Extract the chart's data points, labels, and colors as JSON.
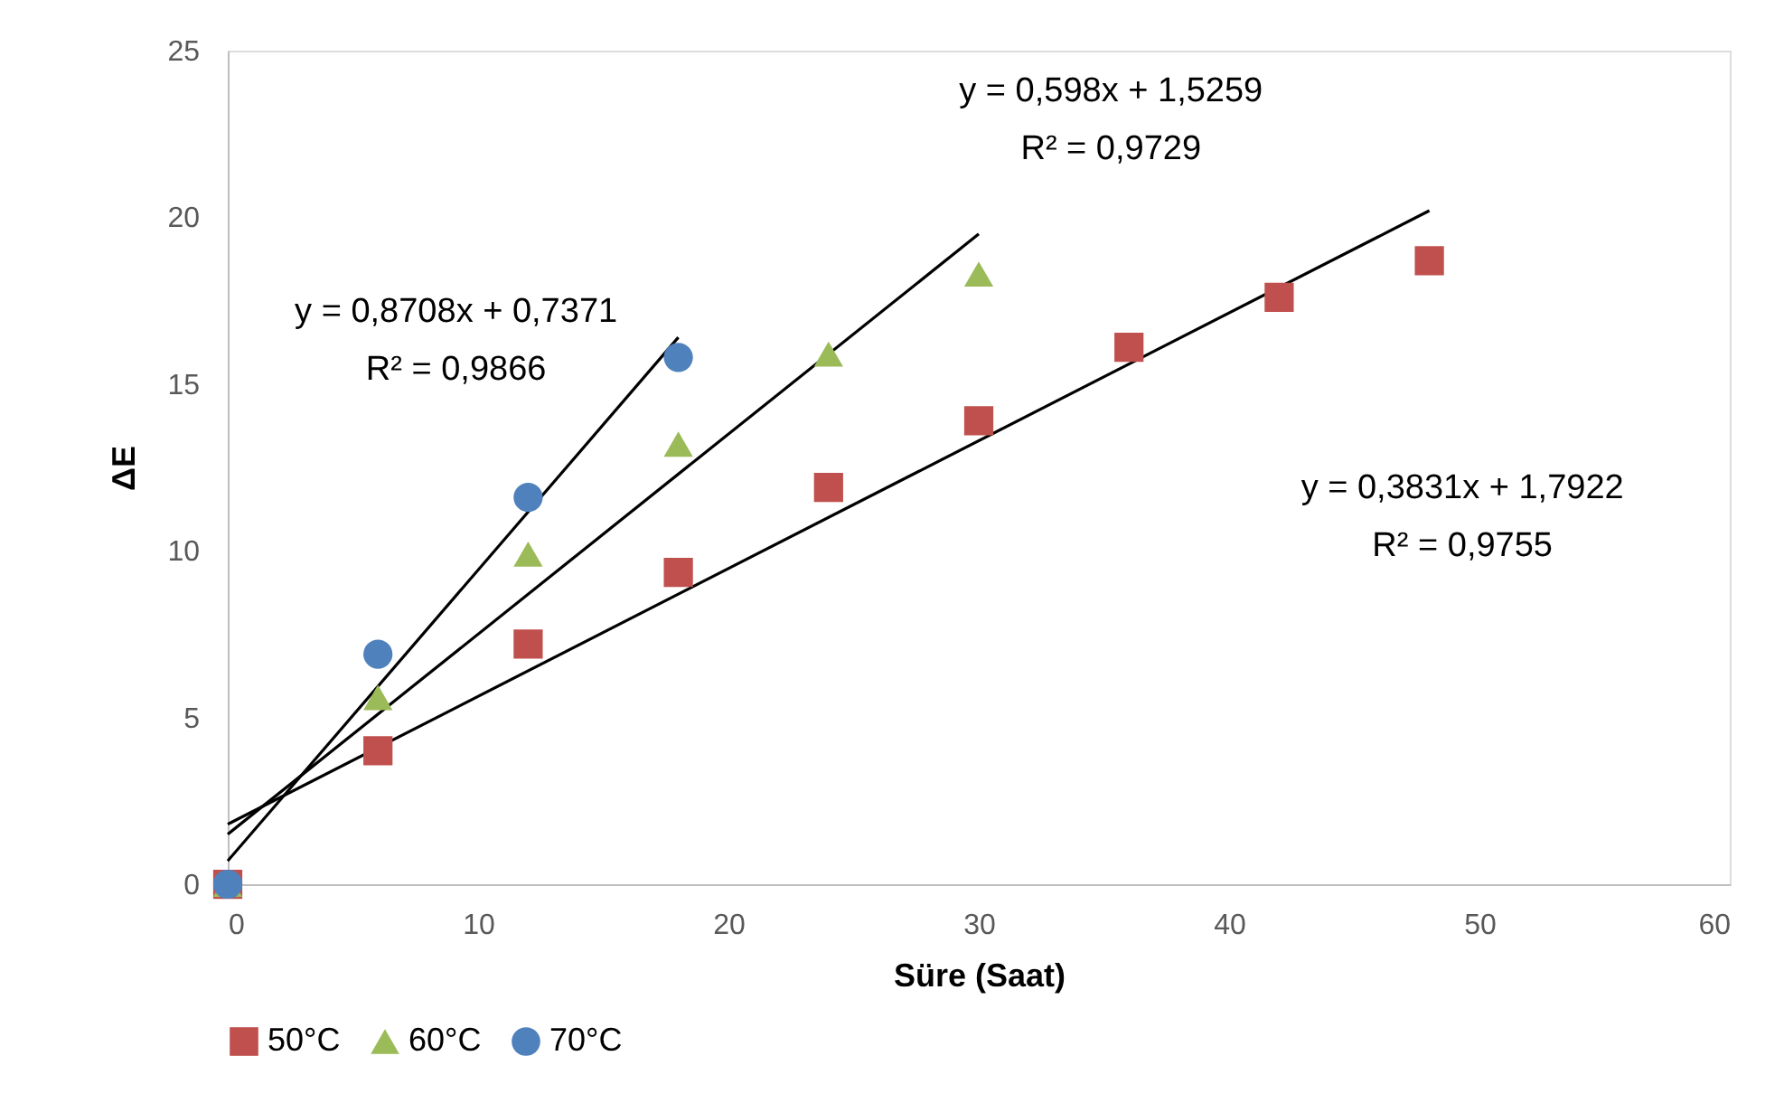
{
  "chart_data": {
    "type": "scatter",
    "xlabel": "Süre (Saat)",
    "ylabel": "ΔE",
    "xlim": [
      0,
      60
    ],
    "xticks": [
      0,
      10,
      20,
      30,
      40,
      50,
      60
    ],
    "ylim": [
      0,
      25
    ],
    "yticks": [
      0,
      5,
      10,
      15,
      20,
      25
    ],
    "grid": false,
    "legend": "bottom",
    "series": [
      {
        "name": "50°C",
        "color": "#c0504d",
        "marker": "square",
        "x": [
          0,
          6,
          12,
          18,
          24,
          30,
          36,
          42,
          48
        ],
        "values": [
          0,
          4.0,
          7.2,
          9.35,
          11.9,
          13.9,
          16.1,
          17.6,
          18.7
        ]
      },
      {
        "name": "60°C",
        "color": "#9bbb59",
        "marker": "triangle",
        "x": [
          0,
          6,
          12,
          18,
          24,
          30
        ],
        "values": [
          0,
          5.6,
          9.9,
          13.2,
          15.9,
          18.3
        ]
      },
      {
        "name": "70°C",
        "color": "#4f81bd",
        "marker": "circle",
        "x": [
          0,
          6,
          12,
          18
        ],
        "values": [
          0,
          6.9,
          11.6,
          15.8
        ]
      },
      {
        "type": "line",
        "color": "#000000",
        "x": [
          0,
          48
        ],
        "values": [
          1.8,
          20.2
        ]
      },
      {
        "type": "line",
        "color": "#000000",
        "x": [
          0,
          30
        ],
        "values": [
          1.5,
          19.5
        ]
      },
      {
        "type": "line",
        "color": "#000000",
        "x": [
          0,
          18
        ],
        "values": [
          0.7,
          16.4
        ]
      }
    ],
    "annotations": [
      "y = 0,598x + 1,5259\nR² = 0,9729",
      "y = 0,8708x + 0,7371\nR² = 0,9866",
      "y = 0,3831x + 1,7922\nR² = 0,9755"
    ]
  }
}
